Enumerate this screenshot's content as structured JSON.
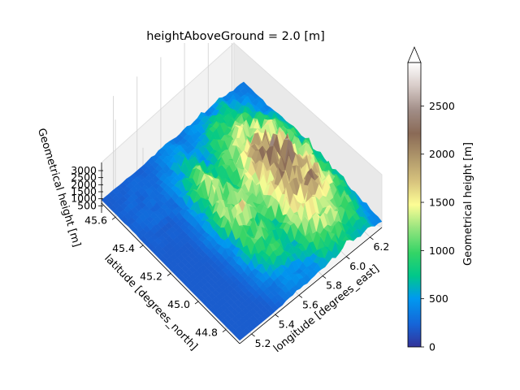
{
  "chart_data": {
    "type": "surface3d",
    "title": "heightAboveGround = 2.0 [m]",
    "xlabel": "longitude [degrees_east]",
    "ylabel": "latitude [degrees_north]",
    "zlabel": "Geometrical height [m]",
    "xlim": [
      5.1,
      6.3
    ],
    "ylim": [
      44.7,
      45.7
    ],
    "zlim": [
      0,
      3000
    ],
    "x_ticks": [
      "5.2",
      "5.4",
      "5.6",
      "5.8",
      "6.0",
      "6.2"
    ],
    "y_ticks": [
      "44.8",
      "45.0",
      "45.2",
      "45.4",
      "45.6"
    ],
    "z_ticks": [
      "500",
      "1000",
      "1500",
      "2000",
      "2500",
      "3000"
    ],
    "colorbar": {
      "label": "Geometrical height [m]",
      "ticks": [
        "0",
        "500",
        "1000",
        "1500",
        "2000",
        "2500"
      ],
      "range": [
        0,
        2950
      ],
      "extend": "max",
      "colormap": "terrain"
    },
    "surface_ranges": [
      {
        "x_range": [
          5.1,
          5.6
        ],
        "y_range": [
          45.3,
          45.7
        ],
        "height_range": [
          150,
          400
        ]
      },
      {
        "x_range": [
          5.45,
          5.8
        ],
        "y_range": [
          44.8,
          45.6
        ],
        "height_range": [
          700,
          2000
        ]
      },
      {
        "x_range": [
          5.7,
          6.3
        ],
        "y_range": [
          44.7,
          45.6
        ],
        "height_range": [
          1200,
          2900
        ]
      }
    ],
    "grid": true
  },
  "icons": {
    "colorbar_extend": "triangle-up"
  }
}
